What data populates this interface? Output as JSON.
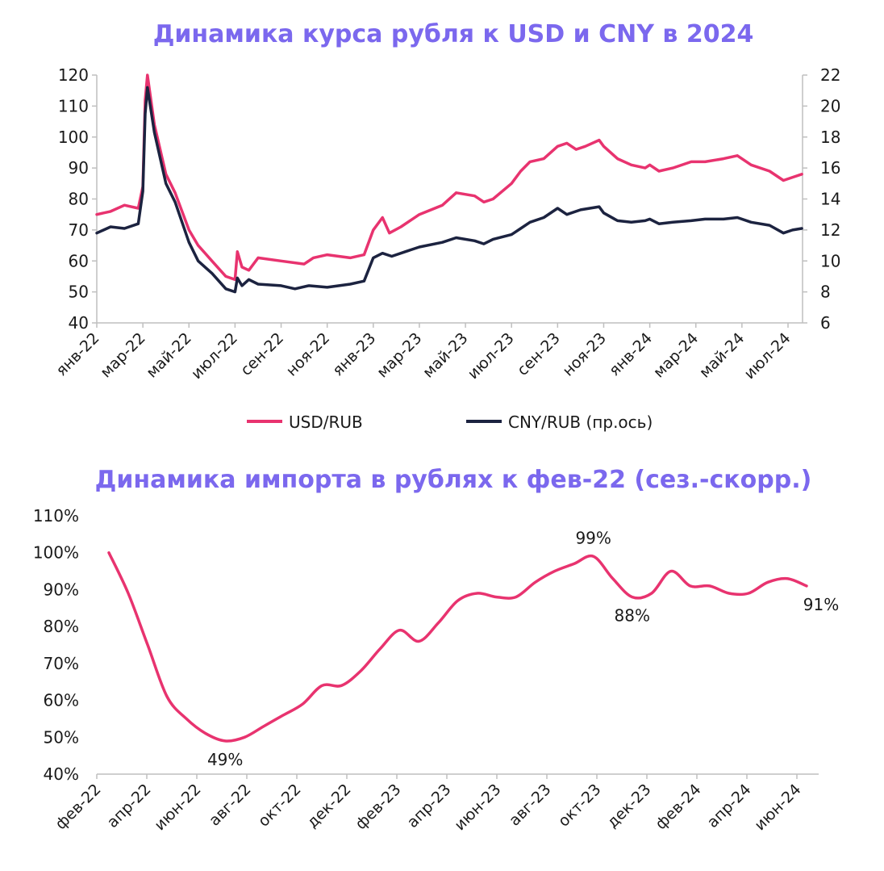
{
  "chart_data": [
    {
      "type": "line",
      "title": "Динамика курса рубля к USD и CNY в 2024",
      "ylim": [
        40,
        120
      ],
      "y2lim": [
        6,
        22
      ],
      "yticks": [
        "40",
        "50",
        "60",
        "70",
        "80",
        "90",
        "100",
        "110",
        "120"
      ],
      "y2ticks": [
        "6",
        "8",
        "10",
        "12",
        "14",
        "16",
        "18",
        "20",
        "22"
      ],
      "x_labels": [
        "янв-22",
        "мар-22",
        "май-22",
        "июл-22",
        "сен-22",
        "ноя-22",
        "янв-23",
        "мар-23",
        "май-23",
        "июл-23",
        "сен-23",
        "ноя-23",
        "янв-24",
        "мар-24",
        "май-24",
        "июл-24"
      ],
      "legend_position": "bottom",
      "series": [
        {
          "name": "USD/RUB",
          "color": "#e8336f",
          "axis": "left",
          "points": [
            [
              0,
              75
            ],
            [
              0.3,
              76
            ],
            [
              0.6,
              78
            ],
            [
              0.9,
              77
            ],
            [
              1.0,
              84
            ],
            [
              1.05,
              112
            ],
            [
              1.1,
              120
            ],
            [
              1.25,
              104
            ],
            [
              1.5,
              88
            ],
            [
              1.7,
              82
            ],
            [
              2.0,
              70
            ],
            [
              2.2,
              65
            ],
            [
              2.5,
              60
            ],
            [
              2.8,
              55
            ],
            [
              3.0,
              54
            ],
            [
              3.05,
              63
            ],
            [
              3.15,
              58
            ],
            [
              3.3,
              57
            ],
            [
              3.5,
              61
            ],
            [
              4.0,
              60
            ],
            [
              4.5,
              59
            ],
            [
              4.7,
              61
            ],
            [
              5.0,
              62
            ],
            [
              5.5,
              61
            ],
            [
              5.8,
              62
            ],
            [
              6.0,
              70
            ],
            [
              6.2,
              74
            ],
            [
              6.35,
              69
            ],
            [
              6.6,
              71
            ],
            [
              7.0,
              75
            ],
            [
              7.5,
              78
            ],
            [
              7.8,
              82
            ],
            [
              8.2,
              81
            ],
            [
              8.4,
              79
            ],
            [
              8.6,
              80
            ],
            [
              9.0,
              85
            ],
            [
              9.2,
              89
            ],
            [
              9.4,
              92
            ],
            [
              9.7,
              93
            ],
            [
              10.0,
              97
            ],
            [
              10.2,
              98
            ],
            [
              10.4,
              96
            ],
            [
              10.6,
              97
            ],
            [
              10.9,
              99
            ],
            [
              11.0,
              97
            ],
            [
              11.3,
              93
            ],
            [
              11.6,
              91
            ],
            [
              11.9,
              90
            ],
            [
              12.0,
              91
            ],
            [
              12.2,
              89
            ],
            [
              12.5,
              90
            ],
            [
              12.9,
              92
            ],
            [
              13.2,
              92
            ],
            [
              13.6,
              93
            ],
            [
              13.9,
              94
            ],
            [
              14.2,
              91
            ],
            [
              14.6,
              89
            ],
            [
              14.9,
              86
            ],
            [
              15.1,
              87
            ],
            [
              15.3,
              88
            ]
          ]
        },
        {
          "name": "CNY/RUB (пр.ось)",
          "color": "#1c2340",
          "axis": "right",
          "points": [
            [
              0,
              11.8
            ],
            [
              0.3,
              12.2
            ],
            [
              0.6,
              12.1
            ],
            [
              0.9,
              12.4
            ],
            [
              1.0,
              14.5
            ],
            [
              1.05,
              19.5
            ],
            [
              1.1,
              21.2
            ],
            [
              1.25,
              18.3
            ],
            [
              1.5,
              15.0
            ],
            [
              1.7,
              13.8
            ],
            [
              2.0,
              11.2
            ],
            [
              2.2,
              10.0
            ],
            [
              2.5,
              9.2
            ],
            [
              2.8,
              8.2
            ],
            [
              3.0,
              8.0
            ],
            [
              3.05,
              8.9
            ],
            [
              3.15,
              8.4
            ],
            [
              3.3,
              8.8
            ],
            [
              3.5,
              8.5
            ],
            [
              4.0,
              8.4
            ],
            [
              4.3,
              8.2
            ],
            [
              4.6,
              8.4
            ],
            [
              5.0,
              8.3
            ],
            [
              5.5,
              8.5
            ],
            [
              5.8,
              8.7
            ],
            [
              6.0,
              10.2
            ],
            [
              6.2,
              10.5
            ],
            [
              6.4,
              10.3
            ],
            [
              6.7,
              10.6
            ],
            [
              7.0,
              10.9
            ],
            [
              7.5,
              11.2
            ],
            [
              7.8,
              11.5
            ],
            [
              8.2,
              11.3
            ],
            [
              8.4,
              11.1
            ],
            [
              8.6,
              11.4
            ],
            [
              9.0,
              11.7
            ],
            [
              9.2,
              12.1
            ],
            [
              9.4,
              12.5
            ],
            [
              9.7,
              12.8
            ],
            [
              10.0,
              13.4
            ],
            [
              10.2,
              13.0
            ],
            [
              10.5,
              13.3
            ],
            [
              10.9,
              13.5
            ],
            [
              11.0,
              13.1
            ],
            [
              11.3,
              12.6
            ],
            [
              11.6,
              12.5
            ],
            [
              11.9,
              12.6
            ],
            [
              12.0,
              12.7
            ],
            [
              12.2,
              12.4
            ],
            [
              12.5,
              12.5
            ],
            [
              12.9,
              12.6
            ],
            [
              13.2,
              12.7
            ],
            [
              13.6,
              12.7
            ],
            [
              13.9,
              12.8
            ],
            [
              14.2,
              12.5
            ],
            [
              14.6,
              12.3
            ],
            [
              14.9,
              11.8
            ],
            [
              15.1,
              12.0
            ],
            [
              15.3,
              12.1
            ]
          ]
        }
      ]
    },
    {
      "type": "line",
      "title": "Динамика импорта в рублях к фев-22 (сез.-скорр.)",
      "ylim": [
        40,
        110
      ],
      "yticks": [
        "40%",
        "50%",
        "60%",
        "70%",
        "80%",
        "90%",
        "100%",
        "110%"
      ],
      "x_labels": [
        "фев-22",
        "апр-22",
        "июн-22",
        "авг-22",
        "окт-22",
        "дек-22",
        "фев-23",
        "апр-23",
        "июн-23",
        "авг-23",
        "окт-23",
        "дек-23",
        "фев-24",
        "апр-24",
        "июн-24"
      ],
      "series": [
        {
          "name": "",
          "color": "#e8336f",
          "points": [
            [
              0,
              100
            ],
            [
              0.5,
              89
            ],
            [
              1.0,
              75
            ],
            [
              1.5,
              61
            ],
            [
              2.0,
              55
            ],
            [
              2.5,
              51
            ],
            [
              3.0,
              49
            ],
            [
              3.5,
              50
            ],
            [
              4.0,
              53
            ],
            [
              4.5,
              56
            ],
            [
              5.0,
              59
            ],
            [
              5.5,
              64
            ],
            [
              6.0,
              64
            ],
            [
              6.5,
              68
            ],
            [
              7.0,
              74
            ],
            [
              7.5,
              79
            ],
            [
              8.0,
              76
            ],
            [
              8.5,
              81
            ],
            [
              9.0,
              87
            ],
            [
              9.5,
              89
            ],
            [
              10.0,
              88
            ],
            [
              10.5,
              88
            ],
            [
              11.0,
              92
            ],
            [
              11.5,
              95
            ],
            [
              12.0,
              97
            ],
            [
              12.5,
              99
            ],
            [
              13.0,
              93
            ],
            [
              13.5,
              88
            ],
            [
              14.0,
              89
            ],
            [
              14.5,
              95
            ],
            [
              15.0,
              91
            ],
            [
              15.5,
              91
            ],
            [
              16.0,
              89
            ],
            [
              16.5,
              89
            ],
            [
              17.0,
              92
            ],
            [
              17.5,
              93
            ],
            [
              18.0,
              91
            ]
          ],
          "labels": [
            {
              "text": "99%",
              "at": 25
            },
            {
              "text": "88%",
              "at": 27
            },
            {
              "text": "49%",
              "at": 6
            },
            {
              "text": "91%",
              "at": 36
            }
          ]
        }
      ]
    }
  ]
}
